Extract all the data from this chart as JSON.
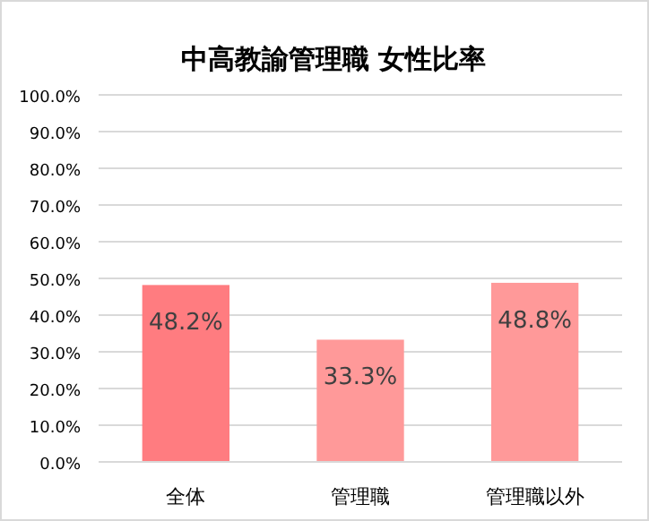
{
  "chart_data": {
    "type": "bar",
    "title": "中高教諭管理職 女性比率",
    "categories": [
      "全体",
      "管理職",
      "管理職以外"
    ],
    "values": [
      48.2,
      33.3,
      48.8
    ],
    "value_labels": [
      "48.2%",
      "33.3%",
      "48.8%"
    ],
    "colors": [
      "#ff7c80",
      "#ff9999",
      "#ff9999"
    ],
    "ylim": [
      0,
      100
    ],
    "yticks": [
      {
        "value": 0,
        "label": "0.0%"
      },
      {
        "value": 10,
        "label": "10.0%"
      },
      {
        "value": 20,
        "label": "20.0%"
      },
      {
        "value": 30,
        "label": "30.0%"
      },
      {
        "value": 40,
        "label": "40.0%"
      },
      {
        "value": 50,
        "label": "50.0%"
      },
      {
        "value": 60,
        "label": "60.0%"
      },
      {
        "value": 70,
        "label": "70.0%"
      },
      {
        "value": 80,
        "label": "80.0%"
      },
      {
        "value": 90,
        "label": "90.0%"
      },
      {
        "value": 100,
        "label": "100.0%"
      }
    ],
    "grid": "y"
  }
}
